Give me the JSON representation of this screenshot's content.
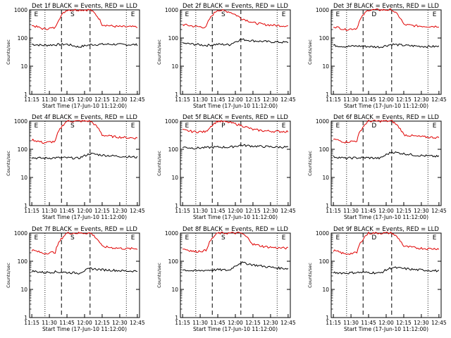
{
  "chart_data": [
    {
      "type": "line",
      "title": "Det 1f  BLACK = Events, RED = LLD",
      "xlabel": "Start Time (17-Jun-10 11:12:00)",
      "ylabel": "Counts/sec",
      "x_ticks": [
        "11:15",
        "11:30",
        "11:45",
        "12:00",
        "12:15",
        "12:30",
        "12:45"
      ],
      "y_ticks": [
        "1",
        "10",
        "100",
        "1000"
      ],
      "y_scale": "log",
      "ylim": [
        1,
        1000
      ],
      "markers": [
        "E",
        "S",
        "E"
      ],
      "series": [
        {
          "name": "BLACK = Events",
          "values": [
            60,
            55,
            58,
            60,
            48,
            58,
            60,
            60,
            58,
            58
          ]
        },
        {
          "name": "RED = LLD",
          "values": [
            280,
            210,
            230,
            1000,
            1000,
            1000,
            300,
            260,
            250,
            250
          ]
        }
      ]
    },
    {
      "type": "line",
      "title": "Det 2f  BLACK = Events, RED = LLD",
      "xlabel": "Start Time (17-Jun-10 11:12:00)",
      "ylabel": "Counts/sec",
      "x_ticks": [
        "11:15",
        "11:30",
        "11:45",
        "12:00",
        "12:15",
        "12:30",
        "12:45"
      ],
      "y_ticks": [
        "1",
        "10",
        "100",
        "1000"
      ],
      "y_scale": "log",
      "ylim": [
        1,
        1000
      ],
      "markers": [
        "E",
        "S",
        "E"
      ],
      "series": [
        {
          "name": "BLACK = Events",
          "values": [
            65,
            60,
            55,
            60,
            58,
            90,
            80,
            75,
            72,
            70
          ]
        },
        {
          "name": "RED = LLD",
          "values": [
            300,
            260,
            240,
            1000,
            850,
            500,
            350,
            300,
            280,
            270
          ]
        }
      ]
    },
    {
      "type": "line",
      "title": "Det 3f  BLACK = Events, RED = LLD",
      "xlabel": "Start Time (17-Jun-10 11:12:00)",
      "ylabel": "Counts/sec",
      "x_ticks": [
        "11:15",
        "11:30",
        "11:45",
        "12:00",
        "12:15",
        "12:30",
        "12:45"
      ],
      "y_ticks": [
        "1",
        "10",
        "100",
        "1000"
      ],
      "y_scale": "log",
      "ylim": [
        1,
        1000
      ],
      "markers": [
        "E",
        "D",
        "E"
      ],
      "series": [
        {
          "name": "BLACK = Events",
          "values": [
            55,
            50,
            52,
            50,
            48,
            60,
            55,
            52,
            50,
            50
          ]
        },
        {
          "name": "RED = LLD",
          "values": [
            260,
            200,
            220,
            1000,
            1000,
            1000,
            300,
            270,
            260,
            260
          ]
        }
      ]
    },
    {
      "type": "line",
      "title": "Det 4f  BLACK = Events, RED = LLD",
      "xlabel": "Start Time (17-Jun-10 11:12:00)",
      "ylabel": "Counts/sec",
      "x_ticks": [
        "11:15",
        "11:30",
        "11:45",
        "12:00",
        "12:15",
        "12:30",
        "12:45"
      ],
      "y_ticks": [
        "1",
        "10",
        "100",
        "1000"
      ],
      "y_scale": "log",
      "ylim": [
        1,
        1000
      ],
      "markers": [
        "E",
        "S",
        "E"
      ],
      "series": [
        {
          "name": "BLACK = Events",
          "values": [
            50,
            48,
            50,
            50,
            48,
            70,
            62,
            58,
            55,
            52
          ]
        },
        {
          "name": "RED = LLD",
          "values": [
            220,
            170,
            190,
            1000,
            1000,
            1000,
            320,
            280,
            260,
            250
          ]
        }
      ]
    },
    {
      "type": "line",
      "title": "Det 5f  BLACK = Events, RED = LLD",
      "xlabel": "Start Time (17-Jun-10 11:12:00)",
      "ylabel": "Counts/sec",
      "x_ticks": [
        "11:15",
        "11:30",
        "11:45",
        "12:00",
        "12:15",
        "12:30",
        "12:45"
      ],
      "y_ticks": [
        "1",
        "10",
        "100",
        "1000"
      ],
      "y_scale": "log",
      "ylim": [
        1,
        1000
      ],
      "markers": [
        "E",
        "P",
        "E"
      ],
      "series": [
        {
          "name": "BLACK = Events",
          "values": [
            120,
            110,
            115,
            120,
            118,
            140,
            130,
            125,
            120,
            120
          ]
        },
        {
          "name": "RED = LLD",
          "values": [
            480,
            420,
            420,
            1000,
            900,
            700,
            500,
            450,
            430,
            430
          ]
        }
      ]
    },
    {
      "type": "line",
      "title": "Det 6f  BLACK = Events, RED = LLD",
      "xlabel": "Start Time (17-Jun-10 11:12:00)",
      "ylabel": "Counts/sec",
      "x_ticks": [
        "11:15",
        "11:30",
        "11:45",
        "12:00",
        "12:15",
        "12:30",
        "12:45"
      ],
      "y_ticks": [
        "1",
        "10",
        "100",
        "1000"
      ],
      "y_scale": "log",
      "ylim": [
        1,
        1000
      ],
      "markers": [
        "E",
        "D",
        "E"
      ],
      "series": [
        {
          "name": "BLACK = Events",
          "values": [
            55,
            48,
            50,
            50,
            48,
            80,
            70,
            62,
            58,
            55
          ]
        },
        {
          "name": "RED = LLD",
          "values": [
            230,
            180,
            200,
            1000,
            1000,
            1000,
            330,
            290,
            270,
            260
          ]
        }
      ]
    },
    {
      "type": "line",
      "title": "Det 7f  BLACK = Events, RED = LLD",
      "xlabel": "Start Time (17-Jun-10 11:12:00)",
      "ylabel": "Counts/sec",
      "x_ticks": [
        "11:15",
        "11:30",
        "11:45",
        "12:00",
        "12:15",
        "12:30",
        "12:45"
      ],
      "y_ticks": [
        "1",
        "10",
        "100",
        "1000"
      ],
      "y_scale": "log",
      "ylim": [
        1,
        1000
      ],
      "markers": [
        "E",
        "S",
        "E"
      ],
      "series": [
        {
          "name": "BLACK = Events",
          "values": [
            45,
            40,
            42,
            40,
            38,
            55,
            50,
            48,
            45,
            45
          ]
        },
        {
          "name": "RED = LLD",
          "values": [
            250,
            190,
            210,
            1000,
            1000,
            1000,
            330,
            300,
            280,
            280
          ]
        }
      ]
    },
    {
      "type": "line",
      "title": "Det 8f  BLACK = Events, RED = LLD",
      "xlabel": "Start Time (17-Jun-10 11:12:00)",
      "ylabel": "Counts/sec",
      "x_ticks": [
        "11:15",
        "11:30",
        "11:45",
        "12:00",
        "12:15",
        "12:30",
        "12:45"
      ],
      "y_ticks": [
        "1",
        "10",
        "100",
        "1000"
      ],
      "y_scale": "log",
      "ylim": [
        1,
        1000
      ],
      "markers": [
        "E",
        "S",
        "E"
      ],
      "series": [
        {
          "name": "BLACK = Events",
          "values": [
            50,
            45,
            48,
            50,
            48,
            90,
            75,
            65,
            58,
            55
          ]
        },
        {
          "name": "RED = LLD",
          "values": [
            280,
            220,
            240,
            1000,
            1000,
            1000,
            400,
            330,
            300,
            290
          ]
        }
      ]
    },
    {
      "type": "line",
      "title": "Det 9f  BLACK = Events, RED = LLD",
      "xlabel": "Start Time (17-Jun-10 11:12:00)",
      "ylabel": "Counts/sec",
      "x_ticks": [
        "11:15",
        "11:30",
        "11:45",
        "12:00",
        "12:15",
        "12:30",
        "12:45"
      ],
      "y_ticks": [
        "1",
        "10",
        "100",
        "1000"
      ],
      "y_scale": "log",
      "ylim": [
        1,
        1000
      ],
      "markers": [
        "E",
        "D",
        "E"
      ],
      "series": [
        {
          "name": "BLACK = Events",
          "values": [
            40,
            38,
            40,
            40,
            38,
            60,
            55,
            50,
            48,
            45
          ]
        },
        {
          "name": "RED = LLD",
          "values": [
            240,
            180,
            200,
            1000,
            1000,
            1000,
            340,
            300,
            280,
            280
          ]
        }
      ]
    }
  ]
}
